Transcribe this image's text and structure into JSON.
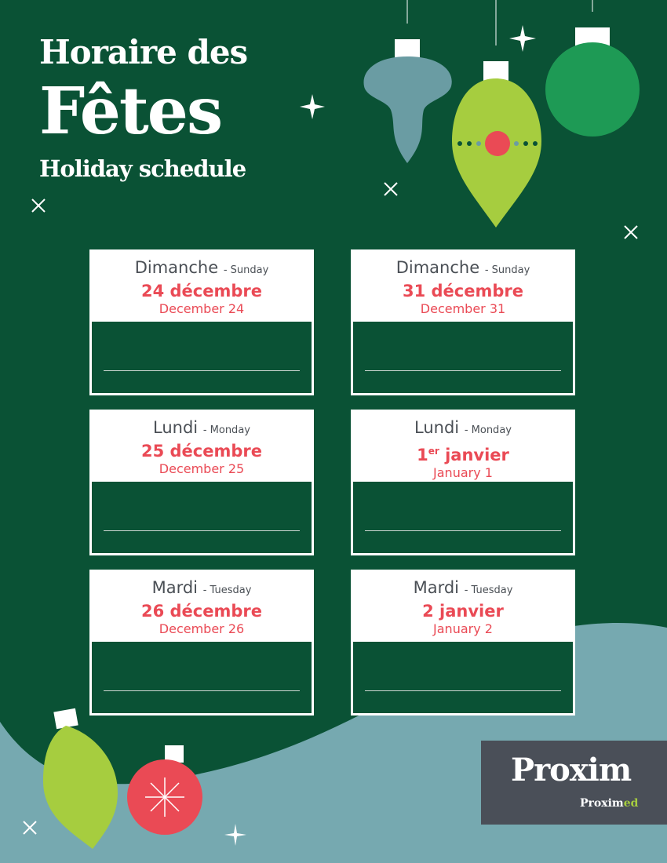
{
  "title": {
    "line1": "Horaire des",
    "line2": "Fêtes",
    "line3": "Holiday schedule"
  },
  "colors": {
    "background": "#0a5235",
    "accent": "#ea4a55",
    "lime": "#a6cd3f",
    "teal": "#76a9b0"
  },
  "days": [
    {
      "day_fr": "Dimanche",
      "day_en": "- Sunday",
      "date_fr": "24 décembre",
      "date_fr_sup": "",
      "date_en": "December 24",
      "hours": ""
    },
    {
      "day_fr": "Dimanche",
      "day_en": "- Sunday",
      "date_fr": "31 décembre",
      "date_fr_sup": "",
      "date_en": "December 31",
      "hours": ""
    },
    {
      "day_fr": "Lundi",
      "day_en": "- Monday",
      "date_fr": "25 décembre",
      "date_fr_sup": "",
      "date_en": "December 25",
      "hours": ""
    },
    {
      "day_fr": "Lundi",
      "day_en": "- Monday",
      "date_fr": "1",
      "date_fr_sup": "er",
      "date_fr_rest": " janvier",
      "date_en": "January 1",
      "hours": ""
    },
    {
      "day_fr": "Mardi",
      "day_en": "- Tuesday",
      "date_fr": "26 décembre",
      "date_fr_sup": "",
      "date_en": "December 26",
      "hours": ""
    },
    {
      "day_fr": "Mardi",
      "day_en": "- Tuesday",
      "date_fr": "2 janvier",
      "date_fr_sup": "",
      "date_en": "January 2",
      "hours": ""
    }
  ],
  "logo": {
    "brand": "Proxim",
    "sub_a": "Proxim",
    "sub_b": "ed"
  }
}
